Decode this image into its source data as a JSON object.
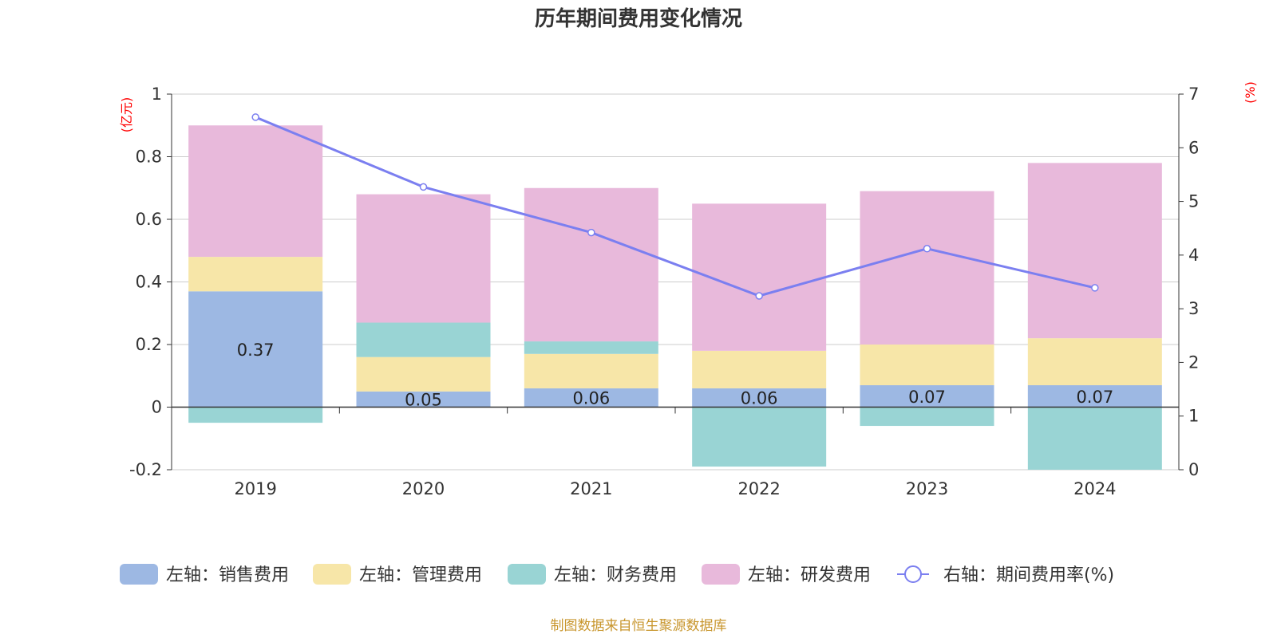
{
  "chart_data": {
    "type": "bar",
    "stacked": true,
    "title": "历年期间费用变化情况",
    "categories": [
      "2019",
      "2020",
      "2021",
      "2022",
      "2023",
      "2024"
    ],
    "y_left": {
      "unit": "(亿元)",
      "range": [
        -0.2,
        1
      ],
      "ticks": [
        "-0.2",
        "0",
        "0.2",
        "0.4",
        "0.6",
        "0.8",
        "1"
      ]
    },
    "y_right": {
      "unit": "(%)",
      "range": [
        0,
        7
      ],
      "ticks": [
        "0",
        "1",
        "2",
        "3",
        "4",
        "5",
        "6",
        "7"
      ]
    },
    "grid": true,
    "legend_position": "bottom",
    "series": [
      {
        "name": "左轴：销售费用",
        "axis": "left",
        "color": "#9db8e3",
        "values": [
          0.37,
          0.05,
          0.06,
          0.06,
          0.07,
          0.07
        ],
        "labels": [
          "0.37",
          "0.05",
          "0.06",
          "0.06",
          "0.07",
          "0.07"
        ]
      },
      {
        "name": "左轴：管理费用",
        "axis": "left",
        "color": "#f7e6a8",
        "values": [
          0.11,
          0.11,
          0.11,
          0.12,
          0.13,
          0.15
        ]
      },
      {
        "name": "左轴：财务费用",
        "axis": "left",
        "color": "#99d4d4",
        "values": [
          -0.05,
          0.11,
          0.04,
          -0.19,
          -0.06,
          -0.2
        ]
      },
      {
        "name": "左轴：研发费用",
        "axis": "left",
        "color": "#e8b9db",
        "values": [
          0.42,
          0.41,
          0.49,
          0.47,
          0.49,
          0.56
        ]
      },
      {
        "name": "右轴：期间费用率(%)",
        "axis": "right",
        "type": "line",
        "color": "#7b7ff0",
        "values": [
          6.57,
          5.27,
          4.42,
          3.24,
          4.12,
          3.39
        ]
      }
    ],
    "source": "制图数据来自恒生聚源数据库"
  }
}
